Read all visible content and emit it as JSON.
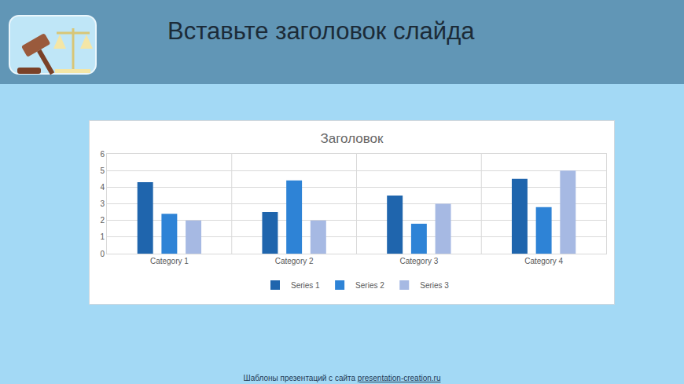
{
  "slide": {
    "title": "Вставьте заголовок слайда",
    "footer": "Шаблоны презентаций с сайта",
    "footer_link": "presentation-creation.ru"
  },
  "chart_data": {
    "type": "bar",
    "title": "Заголовок",
    "categories": [
      "Category 1",
      "Category 2",
      "Category 3",
      "Category 4"
    ],
    "series": [
      {
        "name": "Series 1",
        "color": "#1f65ad",
        "values": [
          4.3,
          2.5,
          3.5,
          4.5
        ]
      },
      {
        "name": "Series 2",
        "color": "#2e83d6",
        "values": [
          2.4,
          4.4,
          1.8,
          2.8
        ]
      },
      {
        "name": "Series 3",
        "color": "#a6b9e3",
        "values": [
          2,
          2,
          3,
          5
        ]
      }
    ],
    "ylim": [
      0,
      6
    ],
    "yticks": [
      0,
      1,
      2,
      3,
      4,
      5,
      6
    ],
    "grid": true,
    "legend": "bottom"
  }
}
